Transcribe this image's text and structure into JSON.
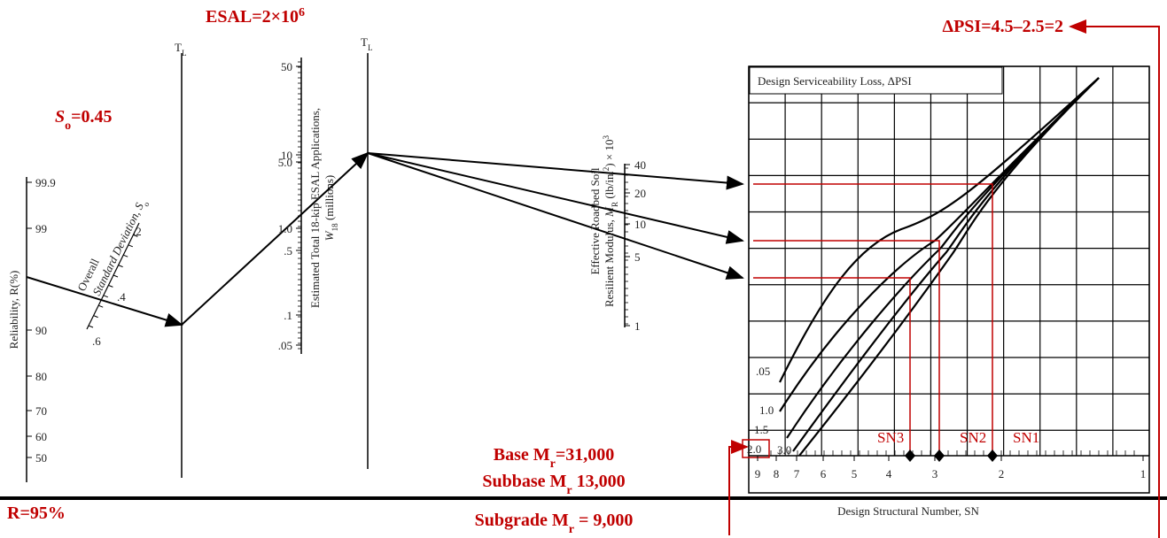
{
  "annotations": {
    "esal": {
      "text": "ESAL=2×10",
      "sup": "6"
    },
    "delta_psi": "ΔPSI=4.5–2.5=2",
    "so": {
      "symbol": "S",
      "sub": "o",
      "rest": "=0.45"
    },
    "reliability": "R=95%",
    "base": {
      "pre": "Base M",
      "sub": "r",
      "rest": "=31,000"
    },
    "subbase": {
      "pre": "Subbase M",
      "sub": "r",
      "rest": " 13,000"
    },
    "subgrade": {
      "pre": "Subgrade M",
      "sub": "r",
      "rest": " = 9,000"
    },
    "sn_labels": [
      "SN3",
      "SN2",
      "SN1"
    ]
  },
  "scales": {
    "reliability": {
      "label": "Reliability, R(%)",
      "ticks": [
        "99.9",
        "99",
        "90",
        "80",
        "70",
        "60",
        "50"
      ]
    },
    "std_dev": {
      "label_line1": "Overall",
      "label_line2": "Standard Deviation, ",
      "symbol": "S",
      "sub": "o",
      "ticks": [
        ".2",
        ".4",
        ".6"
      ]
    },
    "tl_1": {
      "main": "T",
      "sub": "L"
    },
    "esal": {
      "label_line1": "Estimated Total 18-kip ESAL Applications,",
      "symbol": "W",
      "sub": "18",
      "rest": " (millions)",
      "ticks": [
        "50",
        "10",
        "5.0",
        "1.0",
        ".5",
        ".1",
        ".05"
      ]
    },
    "tl_2": {
      "main": "T",
      "sub": "L"
    },
    "modulus": {
      "label_line1": "Effective Roadbed Soil",
      "pre": "Resilient Modulus, ",
      "symbol": "M",
      "sub": "R",
      "unit": " (lb/in.",
      "unit_sup": "2",
      "mult": ") × 10",
      "mult_sup": "3",
      "ticks": [
        "40",
        "20",
        "10",
        "5",
        "1"
      ]
    }
  },
  "chart": {
    "title": "Design Serviceability Loss, ΔPSI",
    "curve_labels": [
      ".05",
      "1.0",
      "1.5",
      "2.0",
      "3.0"
    ],
    "x_ticks": [
      "9",
      "8",
      "7",
      "6",
      "5",
      "4",
      "3",
      "2",
      "1"
    ],
    "x_label": "Design Structural Number, SN"
  }
}
